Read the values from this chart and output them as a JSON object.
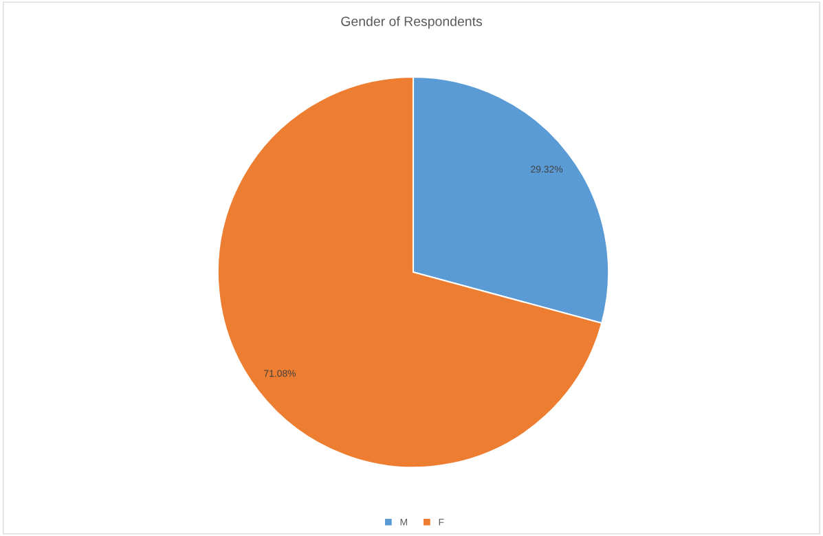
{
  "chart_data": {
    "type": "pie",
    "title": "Gender of Respondents",
    "categories": [
      "M",
      "F"
    ],
    "values": [
      29.32,
      71.08
    ],
    "value_labels": [
      "29.32%",
      "71.08%"
    ],
    "colors": [
      "#5b9bd5",
      "#ed7d31"
    ],
    "legend": "bottom"
  }
}
